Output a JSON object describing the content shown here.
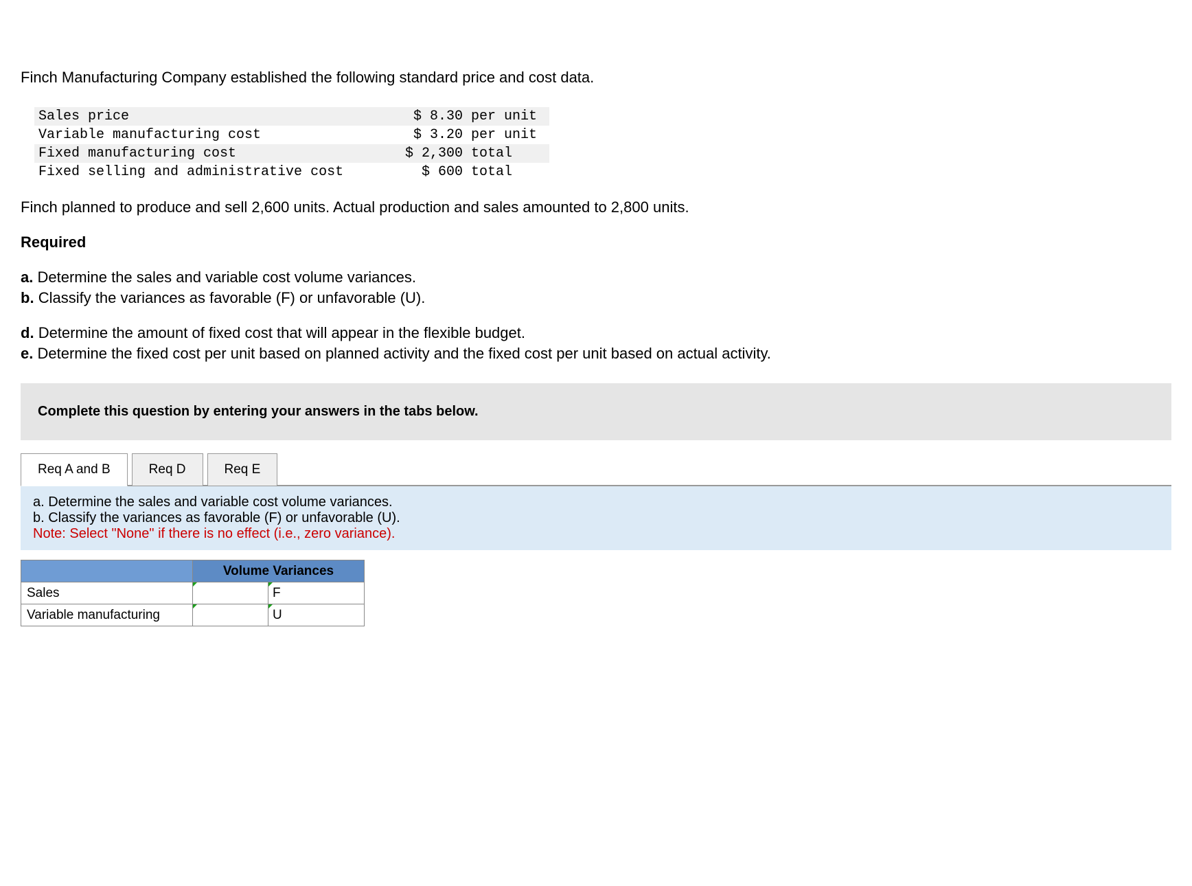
{
  "intro": "Finch Manufacturing Company established the following standard price and cost data.",
  "cost_data": {
    "rows": [
      {
        "label": "Sales price",
        "value": "$ 8.30",
        "unit": "per unit"
      },
      {
        "label": "Variable manufacturing cost",
        "value": "$ 3.20",
        "unit": "per unit"
      },
      {
        "label": "Fixed manufacturing cost",
        "value": "$ 2,300",
        "unit": "total"
      },
      {
        "label": "Fixed selling and administrative cost",
        "value": "$ 600",
        "unit": "total"
      }
    ]
  },
  "plan_sentence": "Finch planned to produce and sell 2,600 units. Actual production and sales amounted to 2,800 units.",
  "required_heading": "Required",
  "reqs": {
    "a": "Determine the sales and variable cost volume variances.",
    "b": "Classify the variances as favorable (F) or unfavorable (U).",
    "d": "Determine the amount of fixed cost that will appear in the flexible budget.",
    "e": "Determine the fixed cost per unit based on planned activity and the fixed cost per unit based on actual activity."
  },
  "instruction": "Complete this question by entering your answers in the tabs below.",
  "tabs": {
    "ab": "Req A and B",
    "d": "Req D",
    "e": "Req E"
  },
  "tab_note": {
    "line1": "a. Determine the sales and variable cost volume variances.",
    "line2": "b. Classify the variances as favorable (F) or unfavorable (U).",
    "line3": "Note: Select \"None\" if there is no effect (i.e., zero variance)."
  },
  "variance_table": {
    "header": "Volume Variances",
    "rows": [
      {
        "label": "Sales",
        "amount": "",
        "fu": "F"
      },
      {
        "label": "Variable manufacturing",
        "amount": "",
        "fu": "U"
      }
    ]
  },
  "labels": {
    "a": "a.",
    "b": "b.",
    "d": "d.",
    "e": "e."
  }
}
